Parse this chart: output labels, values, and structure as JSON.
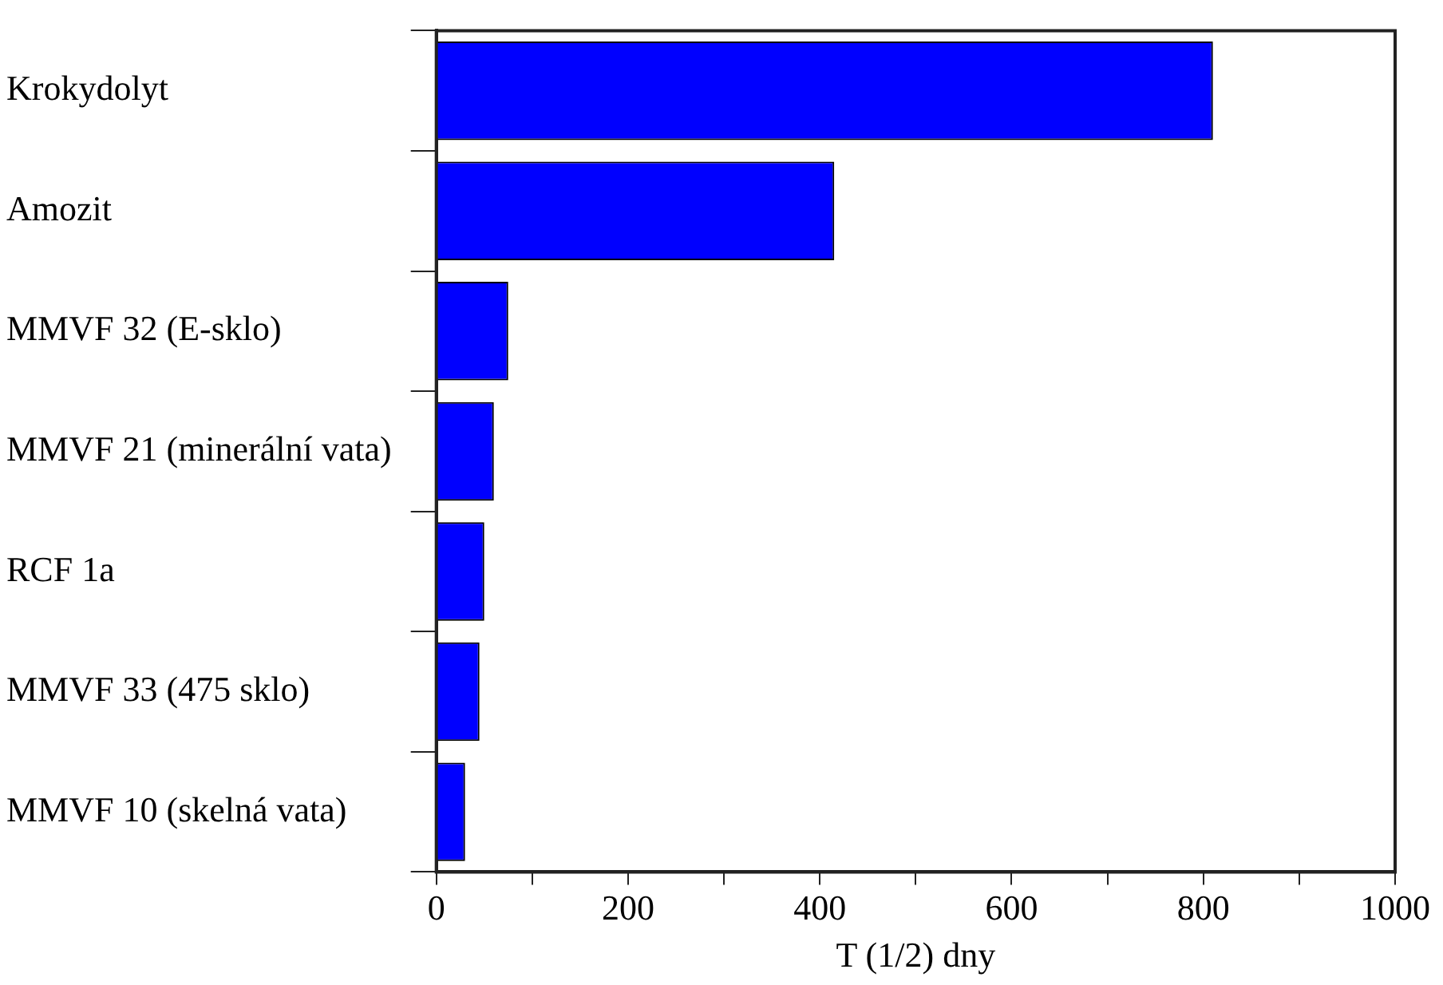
{
  "chart_data": {
    "type": "bar",
    "orientation": "horizontal",
    "xlabel": "T (1/2) dny",
    "categories": [
      "Krokydolyt",
      "Amozit",
      "MMVF 32 (E-sklo)",
      "MMVF 21 (minerální vata)",
      "RCF 1a",
      "MMVF 33 (475 sklo)",
      "MMVF 10 (skelná vata)"
    ],
    "values": [
      810,
      415,
      75,
      60,
      50,
      45,
      30
    ],
    "color": "#0000ff",
    "xlim": [
      0,
      1000
    ],
    "xticks": [
      0,
      {
        "value": 100,
        "label": null
      },
      200,
      {
        "value": 300,
        "label": null
      },
      400,
      {
        "value": 500,
        "label": null
      },
      600,
      {
        "value": 700,
        "label": null
      },
      800,
      {
        "value": 900,
        "label": null
      },
      1000
    ],
    "grid": false,
    "legend": false
  }
}
